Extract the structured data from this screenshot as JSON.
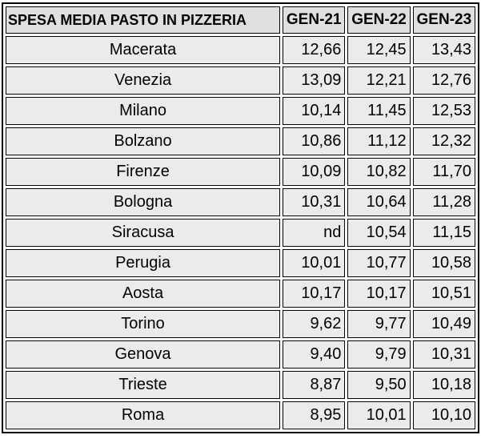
{
  "table": {
    "headers": [
      "SPESA MEDIA PASTO IN PIZZERIA",
      "GEN-21",
      "GEN-22",
      "GEN-23"
    ],
    "rows": [
      {
        "city": "Macerata",
        "values": [
          "12,66",
          "12,45",
          "13,43"
        ]
      },
      {
        "city": "Venezia",
        "values": [
          "13,09",
          "12,21",
          "12,76"
        ]
      },
      {
        "city": "Milano",
        "values": [
          "10,14",
          "11,45",
          "12,53"
        ]
      },
      {
        "city": "Bolzano",
        "values": [
          "10,86",
          "11,12",
          "12,32"
        ]
      },
      {
        "city": "Firenze",
        "values": [
          "10,09",
          "10,82",
          "11,70"
        ]
      },
      {
        "city": "Bologna",
        "values": [
          "10,31",
          "10,64",
          "11,28"
        ]
      },
      {
        "city": "Siracusa",
        "values": [
          "nd",
          "10,54",
          "11,15"
        ]
      },
      {
        "city": "Perugia",
        "values": [
          "10,01",
          "10,77",
          "10,58"
        ]
      },
      {
        "city": "Aosta",
        "values": [
          "10,17",
          "10,17",
          "10,51"
        ]
      },
      {
        "city": "Torino",
        "values": [
          "9,62",
          "9,77",
          "10,49"
        ]
      },
      {
        "city": "Genova",
        "values": [
          "9,40",
          "9,79",
          "10,31"
        ]
      },
      {
        "city": "Trieste",
        "values": [
          "8,87",
          "9,50",
          "10,18"
        ]
      },
      {
        "city": "Roma",
        "values": [
          "8,95",
          "10,01",
          "10,10"
        ]
      }
    ]
  },
  "colors": {
    "cell_background": "#ebebeb",
    "header_background": "#e0e0e0",
    "border": "#000000"
  }
}
